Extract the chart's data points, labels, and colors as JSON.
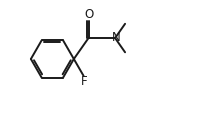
{
  "background_color": "#ffffff",
  "line_color": "#1a1a1a",
  "text_color": "#1a1a1a",
  "line_width": 1.4,
  "figsize": [
    2.07,
    1.19
  ],
  "dpi": 100,
  "xlim": [
    0,
    10
  ],
  "ylim": [
    0,
    5.75
  ]
}
